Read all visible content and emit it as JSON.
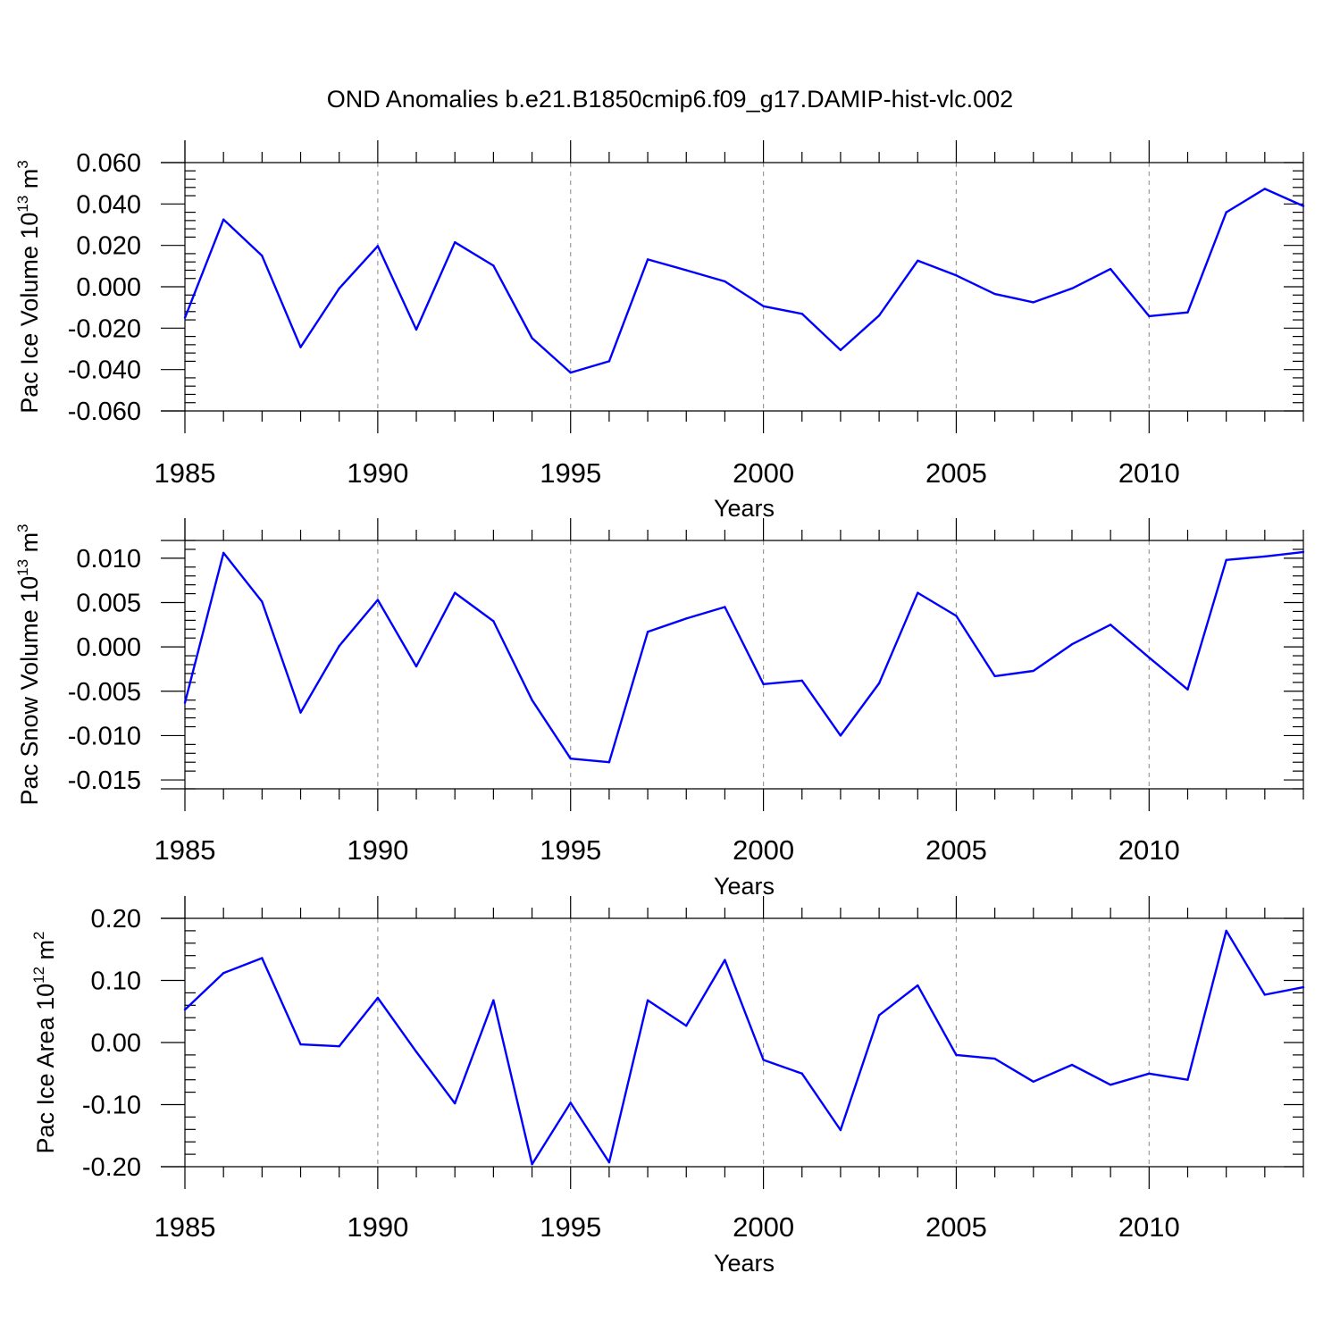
{
  "title": "OND Anomalies b.e21.B1850cmip6.f09_g17.DAMIP-hist-vlc.002",
  "colors": {
    "line": "#0000ff",
    "axis": "#000000",
    "grid": "#9a9a9a",
    "background": "#ffffff"
  },
  "chart_data": [
    {
      "type": "line",
      "xlabel": "Years",
      "ylabel": {
        "text": "Pac Ice Volume 10",
        "exp": "13",
        "unit": " m",
        "unit_exp": "3"
      },
      "xlim": [
        1985,
        2014
      ],
      "ylim": [
        -0.06,
        0.06
      ],
      "x_ticks": [
        1985,
        1990,
        1995,
        2000,
        2005,
        2010
      ],
      "x_tick_labels": [
        "1985",
        "1990",
        "1995",
        "2000",
        "2005",
        "2010"
      ],
      "y_ticks": [
        0.06,
        0.04,
        0.02,
        0.0,
        -0.02,
        -0.04,
        -0.06
      ],
      "y_tick_labels": [
        "0.060",
        "0.040",
        "0.020",
        "0.000",
        "-0.020",
        "-0.040",
        "-0.060"
      ],
      "x": [
        1985,
        1986,
        1987,
        1988,
        1989,
        1990,
        1991,
        1992,
        1993,
        1994,
        1995,
        1996,
        1997,
        1998,
        1999,
        2000,
        2001,
        2002,
        2003,
        2004,
        2005,
        2006,
        2007,
        2008,
        2009,
        2010,
        2011,
        2012,
        2013,
        2014
      ],
      "series": [
        {
          "values": [
            -0.015,
            0.0325,
            0.015,
            -0.0292,
            -0.0008,
            0.0197,
            -0.0207,
            0.0215,
            0.0102,
            -0.0248,
            -0.0415,
            -0.036,
            0.0132,
            0.008,
            0.0026,
            -0.0094,
            -0.0131,
            -0.0306,
            -0.0139,
            0.0126,
            0.0055,
            -0.0035,
            -0.0075,
            -0.0008,
            0.0086,
            -0.0142,
            -0.0124,
            0.036,
            0.0473,
            0.039
          ]
        }
      ]
    },
    {
      "type": "line",
      "xlabel": "Years",
      "ylabel": {
        "text": "Pac Snow Volume 10",
        "exp": "13",
        "unit": " m",
        "unit_exp": "3"
      },
      "xlim": [
        1985,
        2014
      ],
      "ylim": [
        -0.016,
        0.012
      ],
      "x_ticks": [
        1985,
        1990,
        1995,
        2000,
        2005,
        2010
      ],
      "x_tick_labels": [
        "1985",
        "1990",
        "1995",
        "2000",
        "2005",
        "2010"
      ],
      "y_ticks": [
        0.01,
        0.005,
        0.0,
        -0.005,
        -0.01,
        -0.015
      ],
      "y_tick_labels": [
        "0.010",
        "0.005",
        "0.000",
        "-0.005",
        "-0.010",
        "-0.015"
      ],
      "x": [
        1985,
        1986,
        1987,
        1988,
        1989,
        1990,
        1991,
        1992,
        1993,
        1994,
        1995,
        1996,
        1997,
        1998,
        1999,
        2000,
        2001,
        2002,
        2003,
        2004,
        2005,
        2006,
        2007,
        2008,
        2009,
        2010,
        2011,
        2012,
        2013,
        2014
      ],
      "series": [
        {
          "values": [
            -0.0063,
            0.0106,
            0.0051,
            -0.0074,
            0.0001,
            0.0053,
            -0.0022,
            0.0061,
            0.0029,
            -0.006,
            -0.0126,
            -0.013,
            0.0017,
            0.0032,
            0.0045,
            -0.0042,
            -0.0038,
            -0.01,
            -0.0041,
            0.0061,
            0.0035,
            -0.0033,
            -0.0027,
            0.0003,
            0.0025,
            -0.0012,
            -0.0048,
            0.0098,
            0.0102,
            0.0107
          ]
        }
      ]
    },
    {
      "type": "line",
      "xlabel": "Years",
      "ylabel": {
        "text": "Pac Ice Area 10",
        "exp": "12",
        "unit": " m",
        "unit_exp": "2"
      },
      "xlim": [
        1985,
        2014
      ],
      "ylim": [
        -0.2,
        0.2
      ],
      "x_ticks": [
        1985,
        1990,
        1995,
        2000,
        2005,
        2010
      ],
      "x_tick_labels": [
        "1985",
        "1990",
        "1995",
        "2000",
        "2005",
        "2010"
      ],
      "y_ticks": [
        0.2,
        0.1,
        0.0,
        -0.1,
        -0.2
      ],
      "y_tick_labels": [
        "0.20",
        "0.10",
        "0.00",
        "-0.10",
        "-0.20"
      ],
      "x": [
        1985,
        1986,
        1987,
        1988,
        1989,
        1990,
        1991,
        1992,
        1993,
        1994,
        1995,
        1996,
        1997,
        1998,
        1999,
        2000,
        2001,
        2002,
        2003,
        2004,
        2005,
        2006,
        2007,
        2008,
        2009,
        2010,
        2011,
        2012,
        2013,
        2014
      ],
      "series": [
        {
          "values": [
            0.053,
            0.112,
            0.136,
            -0.003,
            -0.006,
            0.072,
            -0.015,
            -0.098,
            0.068,
            -0.196,
            -0.097,
            -0.193,
            0.068,
            0.027,
            0.133,
            -0.028,
            -0.05,
            -0.141,
            0.044,
            0.092,
            -0.02,
            -0.026,
            -0.063,
            -0.036,
            -0.068,
            -0.05,
            -0.06,
            0.18,
            0.077,
            0.089
          ]
        }
      ]
    }
  ]
}
